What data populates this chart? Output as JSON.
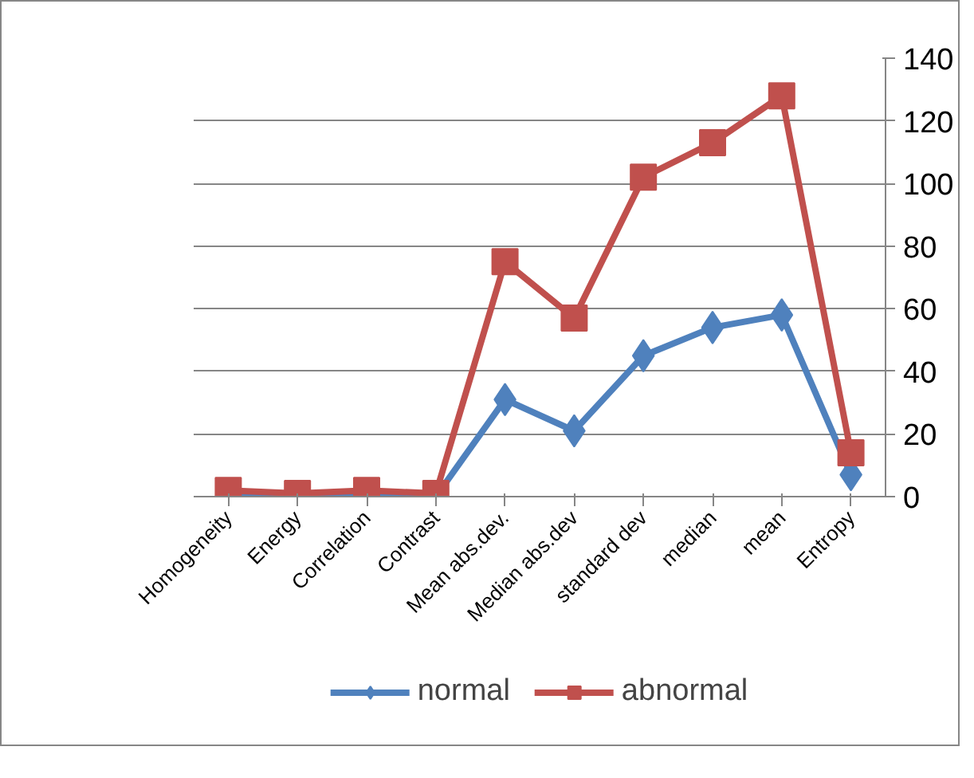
{
  "chart_data": {
    "type": "line",
    "categories": [
      "Homogeneity",
      "Energy",
      "Correlation",
      "Contrast",
      "Mean abs.dev.",
      "Median abs.dev",
      "standard dev",
      "median",
      "mean",
      "Entropy"
    ],
    "series": [
      {
        "name": "normal",
        "color": "#4f81bd",
        "marker": "diamond",
        "values": [
          0,
          0,
          0,
          0,
          31,
          21,
          45,
          54,
          58,
          7
        ]
      },
      {
        "name": "abnormal",
        "color": "#c0504d",
        "marker": "square",
        "values": [
          2,
          1,
          2,
          1,
          75,
          57,
          102,
          113,
          128,
          14
        ]
      }
    ],
    "ylim": [
      0,
      140
    ],
    "yticks": [
      0,
      20,
      40,
      60,
      80,
      100,
      120,
      140
    ],
    "grid": "y",
    "legend": "bottom"
  }
}
